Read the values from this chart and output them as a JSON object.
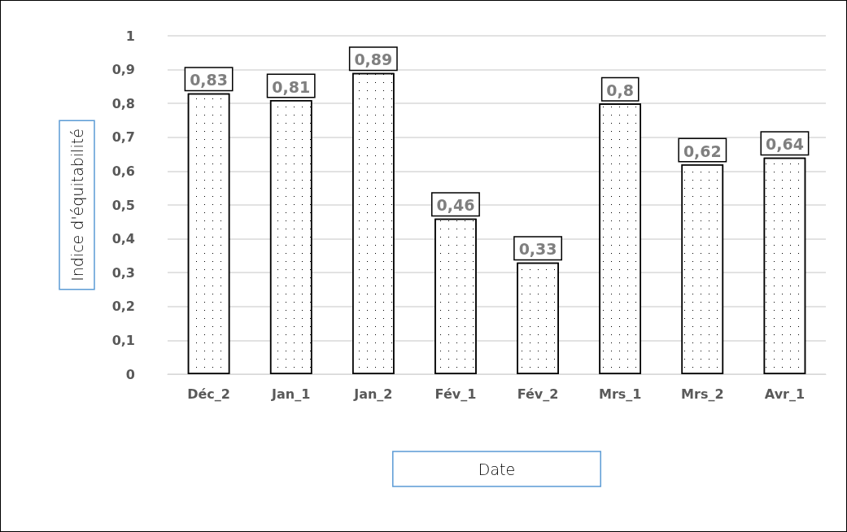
{
  "chart_data": {
    "type": "bar",
    "xlabel": "Date",
    "ylabel": "Indice d'équitabilité",
    "categories": [
      "Déc_2",
      "Jan_1",
      "Jan_2",
      "Fév_1",
      "Fév_2",
      "Mrs_1",
      "Mrs_2",
      "Avr_1"
    ],
    "values": [
      0.83,
      0.81,
      0.89,
      0.46,
      0.33,
      0.8,
      0.62,
      0.64
    ],
    "value_labels": [
      "0,83",
      "0,81",
      "0,89",
      "0,46",
      "0,33",
      "0,8",
      "0,62",
      "0,64"
    ],
    "color": "#ffffff",
    "ylim": [
      0,
      1
    ],
    "yticks": [
      0,
      {
        "value": 0.1,
        "label": "0,1"
      },
      {
        "value": 0.2,
        "label": "0,2"
      },
      {
        "value": 0.3,
        "label": "0,3"
      },
      {
        "value": 0.4,
        "label": "0,4"
      },
      {
        "value": 0.5,
        "label": "0,5"
      },
      {
        "value": 0.6,
        "label": "0,6"
      },
      {
        "value": 0.7,
        "label": "0,7"
      },
      {
        "value": 0.8,
        "label": "0,8"
      },
      {
        "value": 0.9,
        "label": "0,9"
      },
      1
    ],
    "grid": "y"
  }
}
